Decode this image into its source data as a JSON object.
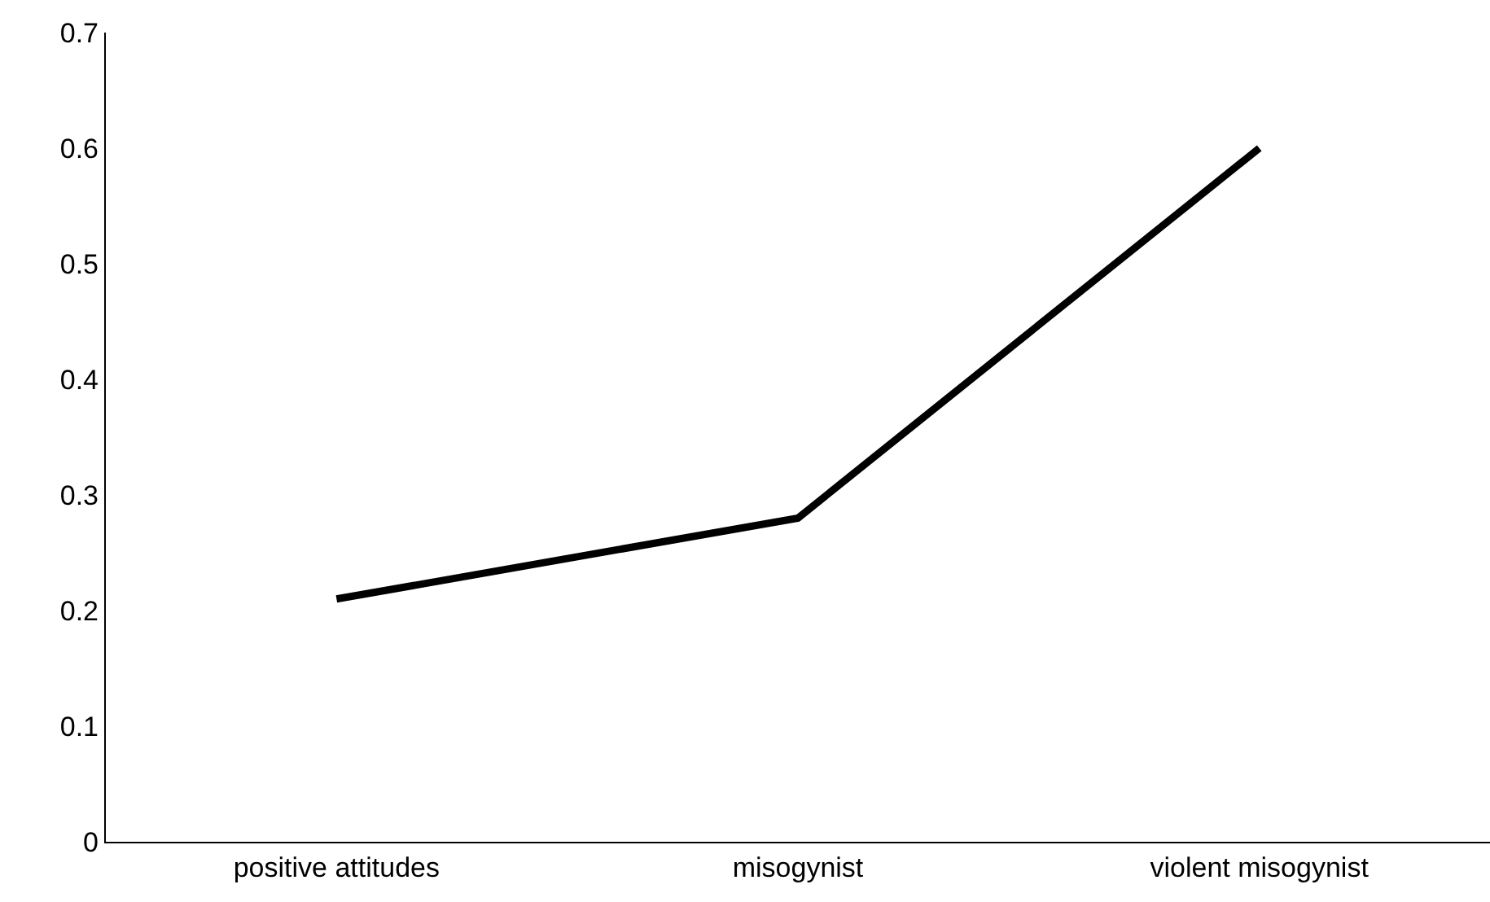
{
  "chart_data": {
    "type": "line",
    "categories": [
      "positive attitudes",
      "misogynist",
      "violent misogynist"
    ],
    "series": [
      {
        "color": "#000000",
        "values": [
          0.21,
          0.28,
          0.6
        ]
      }
    ],
    "ylim": [
      0,
      0.7
    ],
    "yticks": [
      0,
      0.1,
      0.2,
      0.3,
      0.4,
      0.5,
      0.6,
      0.7
    ],
    "grid": false,
    "marker": "none",
    "line_style": "solid"
  }
}
